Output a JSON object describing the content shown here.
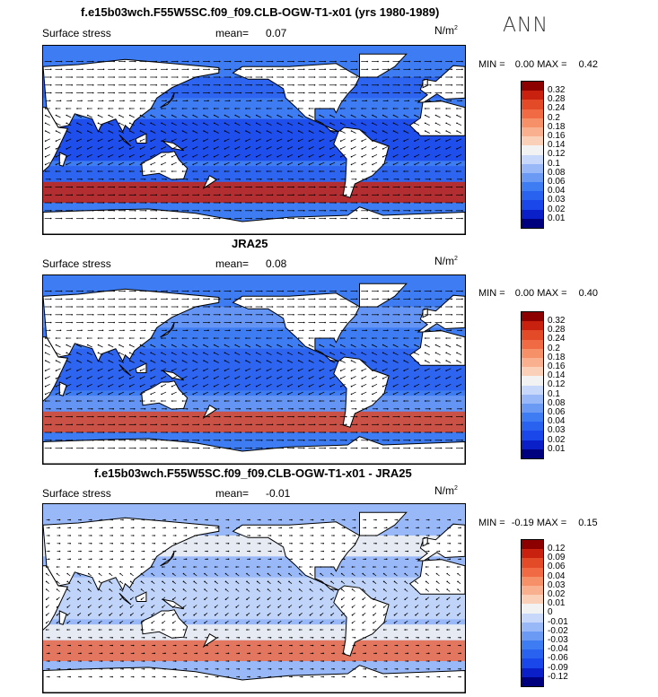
{
  "panels": [
    {
      "title": "f.e15b03wch.F55W5SC.f09_f09.CLB-OGW-T1-x01 (yrs 1980-1989)",
      "variable": "Surface stress",
      "mean_label": "mean=",
      "mean_value": "0.07",
      "units": "N/m",
      "units_exp": "2",
      "min_label": "MIN =",
      "min_value": "0.00",
      "max_label": "MAX =",
      "max_value": "0.42",
      "colorbar_ticks": [
        "0.32",
        "0.28",
        "0.24",
        "0.2",
        "0.18",
        "0.16",
        "0.14",
        "0.12",
        "0.1",
        "0.08",
        "0.06",
        "0.04",
        "0.03",
        "0.02",
        "0.01"
      ]
    },
    {
      "title": "JRA25",
      "variable": "Surface stress",
      "mean_label": "mean=",
      "mean_value": "0.08",
      "units": "N/m",
      "units_exp": "2",
      "min_label": "MIN =",
      "min_value": "0.00",
      "max_label": "MAX =",
      "max_value": "0.40",
      "colorbar_ticks": [
        "0.32",
        "0.28",
        "0.24",
        "0.2",
        "0.18",
        "0.16",
        "0.14",
        "0.12",
        "0.1",
        "0.08",
        "0.06",
        "0.04",
        "0.03",
        "0.02",
        "0.01"
      ]
    },
    {
      "title": "f.e15b03wch.F55W5SC.f09_f09.CLB-OGW-T1-x01 - JRA25",
      "variable": "Surface stress",
      "mean_label": "mean=",
      "mean_value": "-0.01",
      "units": "N/m",
      "units_exp": "2",
      "min_label": "MIN =",
      "min_value": "-0.19",
      "max_label": "MAX =",
      "max_value": "0.15",
      "colorbar_ticks": [
        "0.12",
        "0.09",
        "0.06",
        "0.04",
        "0.03",
        "0.02",
        "0.01",
        "0",
        "-0.01",
        "-0.02",
        "-0.03",
        "-0.04",
        "-0.06",
        "-0.09",
        "-0.12"
      ]
    }
  ],
  "season": "ANN",
  "colors": {
    "seq": [
      "#00007f",
      "#0a1fc8",
      "#1947ea",
      "#2a62f0",
      "#3d7cf2",
      "#6b9af5",
      "#98b8f7",
      "#c7d8fa",
      "#f2f2f2",
      "#fbd0b8",
      "#f9b08f",
      "#f59068",
      "#f06a43",
      "#e34a27",
      "#c8210f",
      "#8c0000"
    ],
    "diff": [
      "#00007f",
      "#0a1fc8",
      "#1947ea",
      "#2a62f0",
      "#3d7cf2",
      "#6b9af5",
      "#98b8f7",
      "#c7d8fa",
      "#f2f2f2",
      "#fbd0b8",
      "#f9b08f",
      "#f59068",
      "#f06a43",
      "#e34a27",
      "#c8210f",
      "#8c0000"
    ]
  }
}
